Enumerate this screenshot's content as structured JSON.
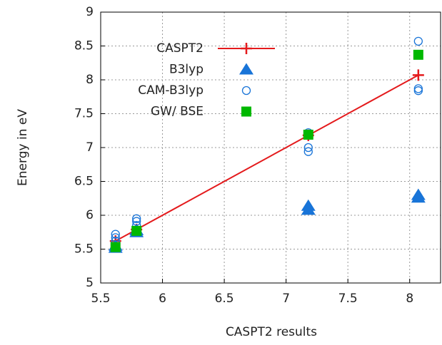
{
  "chart_data": {
    "type": "scatter",
    "xlabel": "CASPT2 results",
    "ylabel": "Energy in eV",
    "xlim": [
      5.5,
      8.25
    ],
    "ylim": [
      5,
      9
    ],
    "xticks": [
      5.5,
      6,
      6.5,
      7,
      7.5,
      8
    ],
    "yticks": [
      5,
      5.5,
      6,
      6.5,
      7,
      7.5,
      8,
      8.5,
      9
    ],
    "grid": true,
    "legend": "top left",
    "series": [
      {
        "name": "CASPT2",
        "color": "#e41a1c",
        "marker": "plus",
        "line": true,
        "x": [
          5.62,
          5.79,
          7.18,
          8.07
        ],
        "values": [
          5.62,
          5.79,
          7.18,
          8.07
        ]
      },
      {
        "name": "B3lyp",
        "color": "#1874d8",
        "marker": "triangle",
        "line": false,
        "x": [
          5.62,
          5.62,
          5.79,
          5.79,
          7.18,
          7.18,
          8.07,
          8.07
        ],
        "values": [
          5.52,
          5.55,
          5.75,
          5.78,
          6.08,
          6.14,
          6.26,
          6.3
        ]
      },
      {
        "name": "CAM-B3lyp",
        "color": "#1874d8",
        "marker": "circle",
        "line": false,
        "x": [
          5.62,
          5.62,
          5.62,
          5.79,
          5.79,
          5.79,
          7.18,
          7.18,
          7.18,
          8.07,
          8.07,
          8.07
        ],
        "values": [
          5.72,
          5.67,
          5.62,
          5.95,
          5.91,
          5.85,
          7.22,
          7.0,
          6.94,
          8.57,
          7.87,
          7.84
        ]
      },
      {
        "name": "GW/ BSE",
        "color": "#00b800",
        "marker": "square",
        "line": false,
        "x": [
          5.62,
          5.79,
          7.18,
          8.07
        ],
        "values": [
          5.53,
          5.77,
          7.19,
          8.37
        ]
      }
    ]
  }
}
